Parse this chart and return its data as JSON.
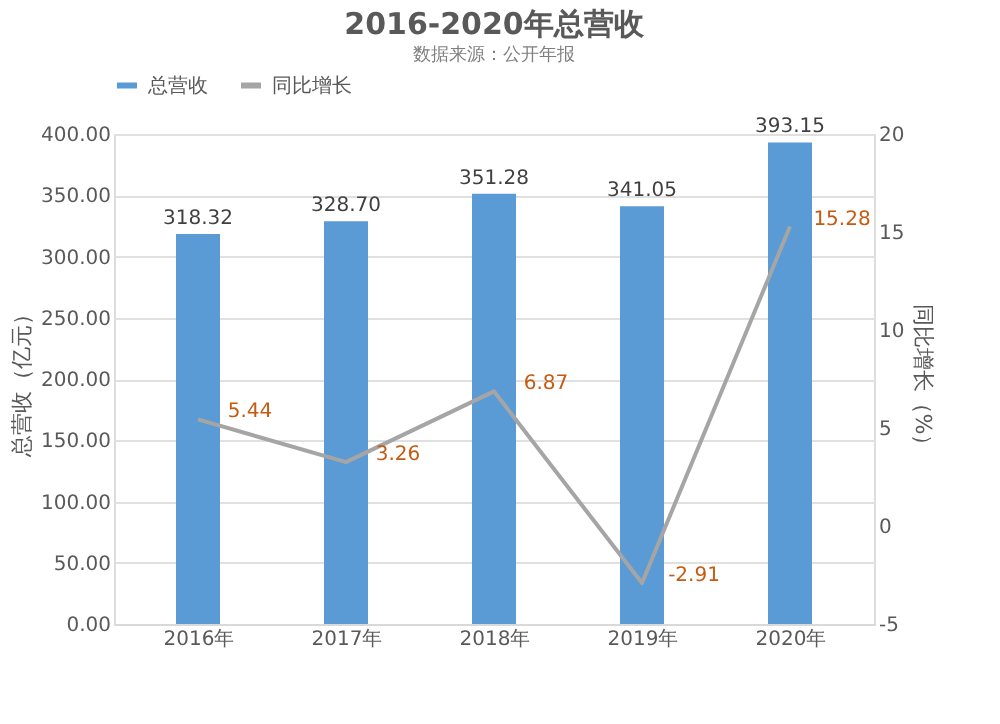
{
  "chart_data": {
    "type": "bar",
    "title": "2016-2020年总营收",
    "categories": [
      "2016年",
      "2017年",
      "2018年",
      "2019年",
      "2020年"
    ],
    "series": [
      {
        "name": "总营收",
        "color": "#5b9bd5",
        "values": [
          318.32,
          328.7,
          351.28,
          341.05,
          393.15
        ],
        "value_labels": [
          "318.32",
          "328.70",
          "351.28",
          "341.05",
          "393.15"
        ]
      },
      {
        "name": "同比增长",
        "type": "line",
        "axis": "y2",
        "color": "#a5a5a5",
        "values": [
          5.44,
          3.26,
          6.87,
          -2.91,
          15.28
        ],
        "value_labels": [
          "5.44",
          "3.26",
          "6.87",
          "-2.91",
          "15.28"
        ]
      }
    ],
    "ylabel": "总营收（亿元）",
    "y2label": "同比增长（%）",
    "ylim": [
      0,
      400
    ],
    "yticks": [
      {
        "value": 0,
        "label": "0.00"
      },
      {
        "value": 50,
        "label": "50.00"
      },
      {
        "value": 100,
        "label": "100.00"
      },
      {
        "value": 150,
        "label": "150.00"
      },
      {
        "value": 200,
        "label": "200.00"
      },
      {
        "value": 250,
        "label": "250.00"
      },
      {
        "value": 300,
        "label": "300.00"
      },
      {
        "value": 350,
        "label": "350.00"
      },
      {
        "value": 400,
        "label": "400.00"
      }
    ],
    "y2lim": [
      -5,
      20
    ],
    "y2ticks": [
      -5,
      0,
      5,
      10,
      15,
      20
    ],
    "grid": "y",
    "legend": "top",
    "marker": "none",
    "annotations": [
      "数据来源：公开年报"
    ]
  }
}
